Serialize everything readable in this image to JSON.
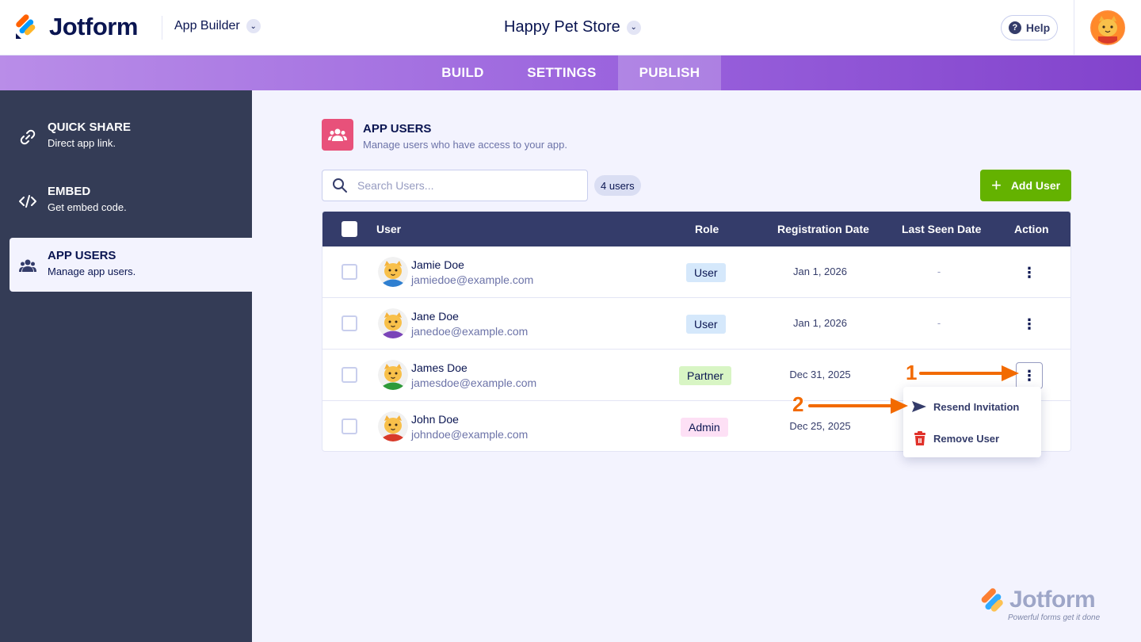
{
  "header": {
    "brand": "Jotform",
    "app_builder_label": "App Builder",
    "app_title": "Happy Pet Store",
    "help_label": "Help"
  },
  "tabs": [
    {
      "label": "BUILD",
      "active": false
    },
    {
      "label": "SETTINGS",
      "active": false
    },
    {
      "label": "PUBLISH",
      "active": true
    }
  ],
  "sidebar": {
    "items": [
      {
        "title": "QUICK SHARE",
        "subtitle": "Direct app link.",
        "icon": "link-icon",
        "active": false
      },
      {
        "title": "EMBED",
        "subtitle": "Get embed code.",
        "icon": "code-icon",
        "active": false
      },
      {
        "title": "APP USERS",
        "subtitle": "Manage app users.",
        "icon": "users-icon",
        "active": true
      }
    ]
  },
  "section": {
    "title": "APP USERS",
    "subtitle": "Manage users who have access to your app."
  },
  "search": {
    "placeholder": "Search Users...",
    "value": ""
  },
  "user_count": "4 users",
  "add_user_label": "Add User",
  "table": {
    "headers": {
      "user": "User",
      "role": "Role",
      "registration": "Registration Date",
      "last_seen": "Last Seen Date",
      "action": "Action"
    },
    "rows": [
      {
        "name": "Jamie Doe",
        "email": "jamiedoe@example.com",
        "role": "User",
        "registered": "Jan 1, 2026",
        "last_seen": "-",
        "avatar_shirt": "#2f7fd0"
      },
      {
        "name": "Jane Doe",
        "email": "janedoe@example.com",
        "role": "User",
        "registered": "Jan 1, 2026",
        "last_seen": "-",
        "avatar_shirt": "#7a44b8"
      },
      {
        "name": "James Doe",
        "email": "jamesdoe@example.com",
        "role": "Partner",
        "registered": "Dec 31, 2025",
        "last_seen": "",
        "avatar_shirt": "#2e9a3a"
      },
      {
        "name": "John Doe",
        "email": "johndoe@example.com",
        "role": "Admin",
        "registered": "Dec 25, 2025",
        "last_seen": "",
        "avatar_shirt": "#d83a2a"
      }
    ]
  },
  "action_menu": {
    "items": [
      {
        "label": "Resend Invitation",
        "icon": "send-icon"
      },
      {
        "label": "Remove User",
        "icon": "trash-icon"
      }
    ]
  },
  "annotations": {
    "marker_1": "1",
    "marker_2": "2",
    "color": "#f26a00"
  },
  "watermark": {
    "brand": "Jotform",
    "tagline": "Powerful forms get it done"
  },
  "colors": {
    "accent": "#64b200",
    "nav_dark": "#343c56",
    "table_head": "#343c6a",
    "tab_purple": "#9a63dd"
  }
}
